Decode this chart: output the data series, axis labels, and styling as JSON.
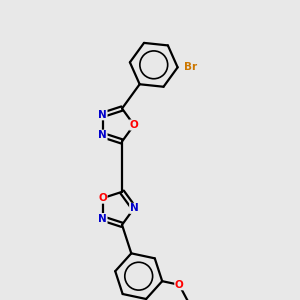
{
  "background_color": "#e8e8e8",
  "bond_color": "#000000",
  "nitrogen_color": "#0000cc",
  "oxygen_color": "#ff0000",
  "bromine_color": "#cc7700",
  "line_width": 1.6,
  "font_size": 7.5,
  "xlim": [
    -2.5,
    4.5
  ],
  "ylim": [
    -3.5,
    5.5
  ]
}
